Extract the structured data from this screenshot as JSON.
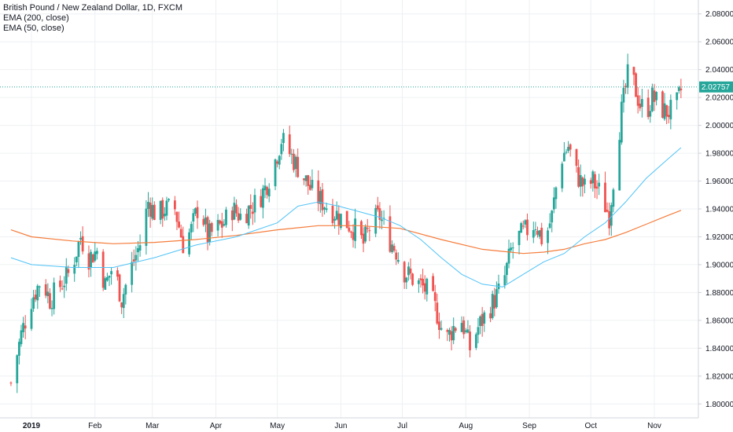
{
  "legend": {
    "title": "British Pound / New Zealand Dollar, 1D, FXCM",
    "ema200": "EMA (200, close)",
    "ema50": "EMA (50, close)"
  },
  "colors": {
    "up": "#26a69a",
    "down": "#ef5350",
    "ema50": "#4fc3f7",
    "ema200": "#f57c3b",
    "current_price": "#26a69a",
    "grid": "#eef0f3",
    "axis": "#d1d4dc"
  },
  "current_price": {
    "value": 2.02757,
    "label": "2.02757"
  },
  "chart_data": {
    "type": "candlestick",
    "ylim": [
      1.79,
      2.09
    ],
    "y_ticks": [
      "2.08000",
      "2.06000",
      "2.04000",
      "2.02000",
      "2.00000",
      "1.98000",
      "1.96000",
      "1.94000",
      "1.92000",
      "1.90000",
      "1.88000",
      "1.86000",
      "1.84000",
      "1.82000",
      "1.80000"
    ],
    "x_ticks": [
      {
        "label": "2019",
        "bold": true,
        "day": 0
      },
      {
        "label": "Feb",
        "bold": false,
        "day": 31
      },
      {
        "label": "Mar",
        "bold": false,
        "day": 59
      },
      {
        "label": "Apr",
        "bold": false,
        "day": 90
      },
      {
        "label": "May",
        "bold": false,
        "day": 120
      },
      {
        "label": "Jun",
        "bold": false,
        "day": 151
      },
      {
        "label": "Jul",
        "bold": false,
        "day": 181
      },
      {
        "label": "Aug",
        "bold": false,
        "day": 212
      },
      {
        "label": "Sep",
        "bold": false,
        "day": 243
      },
      {
        "label": "Oct",
        "bold": false,
        "day": 273
      },
      {
        "label": "Nov",
        "bold": false,
        "day": 304
      }
    ],
    "close_path": [
      [
        -10,
        1.815
      ],
      [
        -5,
        1.85
      ],
      [
        0,
        1.875
      ],
      [
        5,
        1.89
      ],
      [
        9,
        1.875
      ],
      [
        14,
        1.885
      ],
      [
        19,
        1.895
      ],
      [
        24,
        1.92
      ],
      [
        28,
        1.905
      ],
      [
        32,
        1.91
      ],
      [
        36,
        1.885
      ],
      [
        40,
        1.9
      ],
      [
        44,
        1.875
      ],
      [
        48,
        1.895
      ],
      [
        53,
        1.915
      ],
      [
        57,
        1.945
      ],
      [
        61,
        1.935
      ],
      [
        65,
        1.94
      ],
      [
        70,
        1.94
      ],
      [
        74,
        1.915
      ],
      [
        78,
        1.925
      ],
      [
        82,
        1.945
      ],
      [
        86,
        1.92
      ],
      [
        90,
        1.925
      ],
      [
        94,
        1.93
      ],
      [
        98,
        1.94
      ],
      [
        102,
        1.935
      ],
      [
        106,
        1.94
      ],
      [
        110,
        1.945
      ],
      [
        114,
        1.955
      ],
      [
        118,
        1.97
      ],
      [
        122,
        1.99
      ],
      [
        126,
        1.98
      ],
      [
        130,
        1.97
      ],
      [
        134,
        1.96
      ],
      [
        138,
        1.95
      ],
      [
        142,
        1.945
      ],
      [
        146,
        1.94
      ],
      [
        150,
        1.935
      ],
      [
        154,
        1.93
      ],
      [
        158,
        1.925
      ],
      [
        162,
        1.915
      ],
      [
        166,
        1.93
      ],
      [
        170,
        1.935
      ],
      [
        174,
        1.92
      ],
      [
        178,
        1.91
      ],
      [
        182,
        1.895
      ],
      [
        186,
        1.89
      ],
      [
        190,
        1.885
      ],
      [
        194,
        1.88
      ],
      [
        198,
        1.865
      ],
      [
        202,
        1.845
      ],
      [
        206,
        1.855
      ],
      [
        210,
        1.86
      ],
      [
        214,
        1.84
      ],
      [
        218,
        1.855
      ],
      [
        222,
        1.865
      ],
      [
        226,
        1.875
      ],
      [
        230,
        1.885
      ],
      [
        234,
        1.91
      ],
      [
        238,
        1.92
      ],
      [
        242,
        1.925
      ],
      [
        246,
        1.93
      ],
      [
        250,
        1.915
      ],
      [
        254,
        1.935
      ],
      [
        258,
        1.975
      ],
      [
        262,
        1.985
      ],
      [
        266,
        1.965
      ],
      [
        270,
        1.955
      ],
      [
        274,
        1.96
      ],
      [
        278,
        1.95
      ],
      [
        282,
        1.935
      ],
      [
        285,
        1.975
      ],
      [
        288,
        2.01
      ],
      [
        291,
        2.035
      ],
      [
        294,
        2.03
      ],
      [
        297,
        2.015
      ],
      [
        300,
        2.01
      ],
      [
        303,
        2.02
      ],
      [
        306,
        2.015
      ],
      [
        309,
        2.01
      ],
      [
        312,
        2.01
      ],
      [
        315,
        2.015
      ],
      [
        317,
        2.025
      ]
    ],
    "ema50": [
      [
        -10,
        1.905
      ],
      [
        0,
        1.9
      ],
      [
        20,
        1.898
      ],
      [
        40,
        1.898
      ],
      [
        60,
        1.905
      ],
      [
        80,
        1.914
      ],
      [
        100,
        1.92
      ],
      [
        110,
        1.925
      ],
      [
        120,
        1.93
      ],
      [
        130,
        1.942
      ],
      [
        140,
        1.945
      ],
      [
        150,
        1.942
      ],
      [
        160,
        1.938
      ],
      [
        170,
        1.934
      ],
      [
        180,
        1.928
      ],
      [
        190,
        1.918
      ],
      [
        200,
        1.905
      ],
      [
        210,
        1.893
      ],
      [
        220,
        1.886
      ],
      [
        230,
        1.884
      ],
      [
        240,
        1.893
      ],
      [
        250,
        1.902
      ],
      [
        260,
        1.908
      ],
      [
        270,
        1.92
      ],
      [
        280,
        1.93
      ],
      [
        290,
        1.945
      ],
      [
        300,
        1.962
      ],
      [
        310,
        1.975
      ],
      [
        317,
        1.984
      ]
    ],
    "ema200": [
      [
        -10,
        1.925
      ],
      [
        0,
        1.92
      ],
      [
        20,
        1.917
      ],
      [
        40,
        1.915
      ],
      [
        60,
        1.916
      ],
      [
        80,
        1.918
      ],
      [
        100,
        1.921
      ],
      [
        120,
        1.925
      ],
      [
        140,
        1.928
      ],
      [
        160,
        1.928
      ],
      [
        180,
        1.926
      ],
      [
        200,
        1.918
      ],
      [
        220,
        1.911
      ],
      [
        240,
        1.908
      ],
      [
        250,
        1.909
      ],
      [
        260,
        1.911
      ],
      [
        270,
        1.915
      ],
      [
        280,
        1.918
      ],
      [
        290,
        1.923
      ],
      [
        300,
        1.929
      ],
      [
        310,
        1.935
      ],
      [
        317,
        1.939
      ]
    ]
  }
}
